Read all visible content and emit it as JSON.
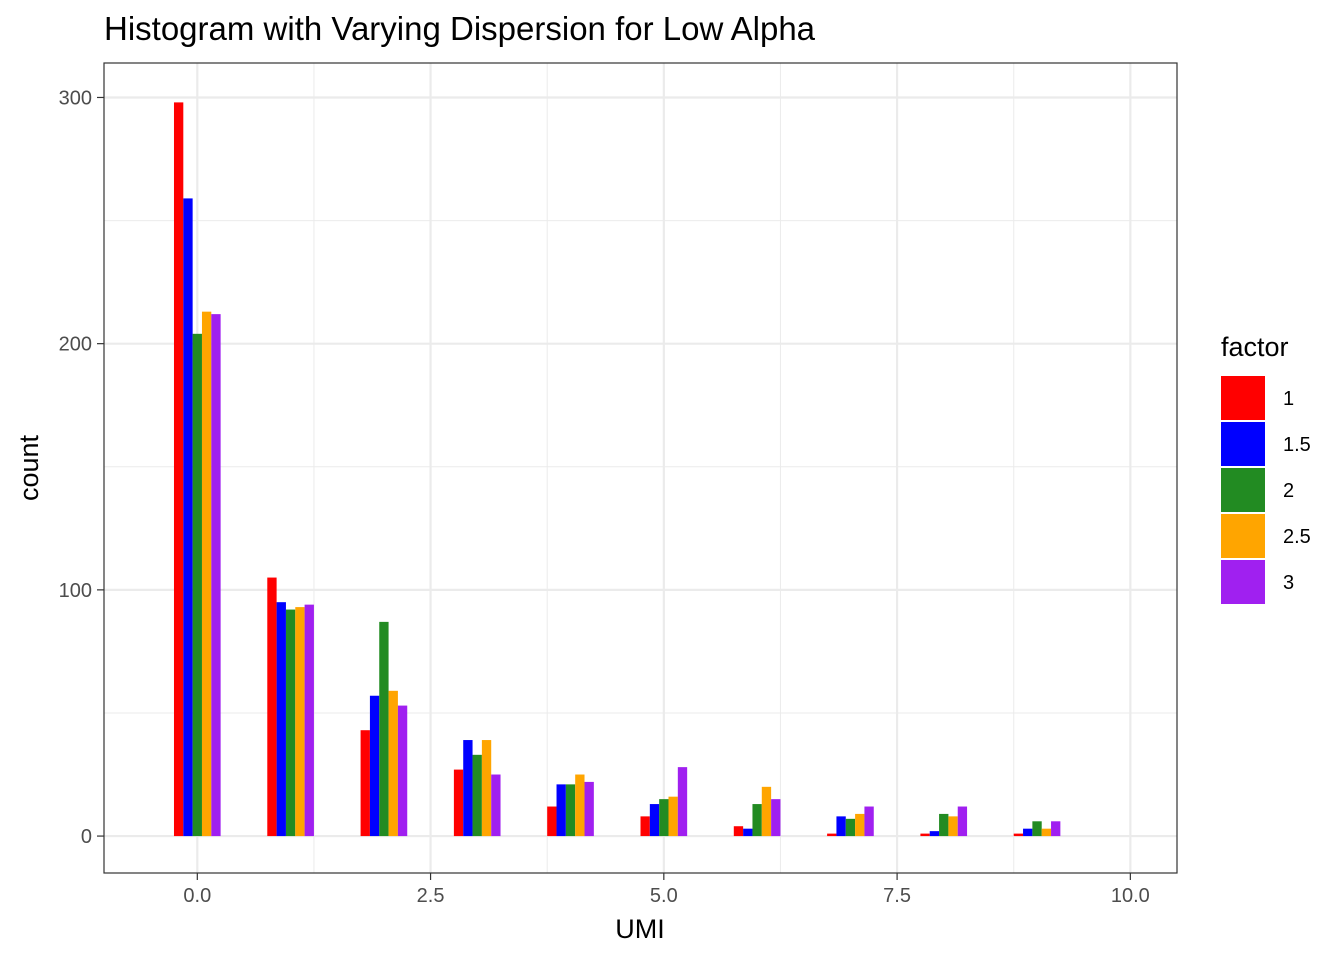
{
  "chart_data": {
    "type": "bar",
    "title": "Histogram with Varying Dispersion for Low Alpha",
    "xlabel": "UMI",
    "ylabel": "count",
    "xlim": [
      -1.0,
      10.5
    ],
    "ylim": [
      -15,
      314
    ],
    "x_ticks": [
      0.0,
      2.5,
      5.0,
      7.5,
      10.0
    ],
    "x_tick_labels": [
      "0.0",
      "2.5",
      "5.0",
      "7.5",
      "10.0"
    ],
    "y_ticks": [
      0,
      100,
      200,
      300
    ],
    "y_tick_labels": [
      "0",
      "100",
      "200",
      "300"
    ],
    "grid": true,
    "legend_position": "right",
    "legend_title": "factor",
    "categories": [
      0,
      1,
      2,
      3,
      4,
      5,
      6,
      7,
      8,
      9
    ],
    "series": [
      {
        "name": "1",
        "color": "#FF0000",
        "values": [
          298,
          105,
          43,
          27,
          12,
          8,
          4,
          1,
          1,
          1
        ]
      },
      {
        "name": "1.5",
        "color": "#0000FF",
        "values": [
          259,
          95,
          57,
          39,
          21,
          13,
          3,
          8,
          2,
          3
        ]
      },
      {
        "name": "2",
        "color": "#228B22",
        "values": [
          204,
          92,
          87,
          33,
          21,
          15,
          13,
          7,
          9,
          6
        ]
      },
      {
        "name": "2.5",
        "color": "#FFA500",
        "values": [
          213,
          93,
          59,
          39,
          25,
          16,
          20,
          9,
          8,
          3
        ]
      },
      {
        "name": "3",
        "color": "#A020F0",
        "values": [
          212,
          94,
          53,
          25,
          22,
          28,
          15,
          12,
          12,
          6
        ]
      }
    ]
  }
}
